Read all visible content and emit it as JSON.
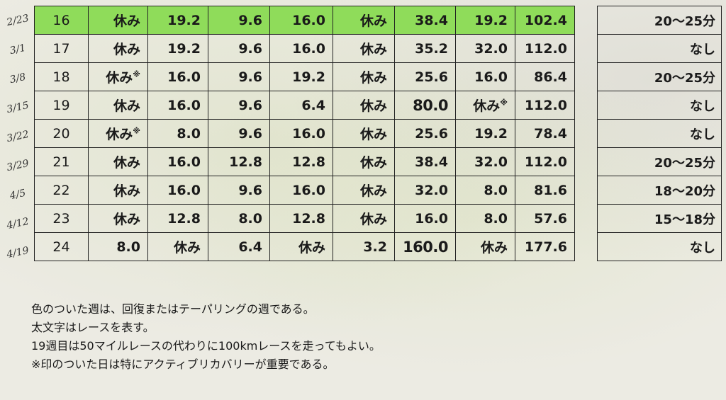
{
  "dates": [
    "2/23",
    "3/1",
    "3/8",
    "3/15",
    "3/22",
    "3/29",
    "4/5",
    "4/12",
    "4/19"
  ],
  "rows": [
    {
      "week": "16",
      "cells": [
        "休み",
        "19.2",
        "9.6",
        "16.0",
        "休み",
        "38.4",
        "19.2",
        "102.4"
      ]
    },
    {
      "week": "17",
      "cells": [
        "休み",
        "19.2",
        "9.6",
        "16.0",
        "休み",
        "35.2",
        "32.0",
        "112.0"
      ]
    },
    {
      "week": "18",
      "cells": [
        "休み※",
        "16.0",
        "9.6",
        "19.2",
        "休み",
        "25.6",
        "16.0",
        "86.4"
      ]
    },
    {
      "week": "19",
      "cells": [
        "休み",
        "16.0",
        "9.6",
        "6.4",
        "休み",
        "80.0",
        "休み※",
        "112.0"
      ]
    },
    {
      "week": "20",
      "cells": [
        "休み※",
        "8.0",
        "9.6",
        "16.0",
        "休み",
        "25.6",
        "19.2",
        "78.4"
      ]
    },
    {
      "week": "21",
      "cells": [
        "休み",
        "16.0",
        "12.8",
        "12.8",
        "休み",
        "38.4",
        "32.0",
        "112.0"
      ]
    },
    {
      "week": "22",
      "cells": [
        "休み",
        "16.0",
        "9.6",
        "16.0",
        "休み",
        "32.0",
        "8.0",
        "81.6"
      ]
    },
    {
      "week": "23",
      "cells": [
        "休み",
        "12.8",
        "8.0",
        "12.8",
        "休み",
        "16.0",
        "8.0",
        "57.6"
      ]
    },
    {
      "week": "24",
      "cells": [
        "8.0",
        "休み",
        "6.4",
        "休み",
        "3.2",
        "160.0",
        "休み",
        "177.6"
      ]
    }
  ],
  "pace": [
    "20～25分",
    "なし",
    "20～25分",
    "なし",
    "なし",
    "20～25分",
    "18～20分",
    "15～18分",
    "なし"
  ],
  "notes": [
    "色のついた週は、回復またはテーパリングの週である。",
    "太文字はレースを表す。",
    "19週目は50マイルレースの代わりに100kmレースを走ってもよい。",
    "※印のついた日は特にアクティブリカバリーが重要である。"
  ],
  "highlight_color": "#8fdc5a"
}
